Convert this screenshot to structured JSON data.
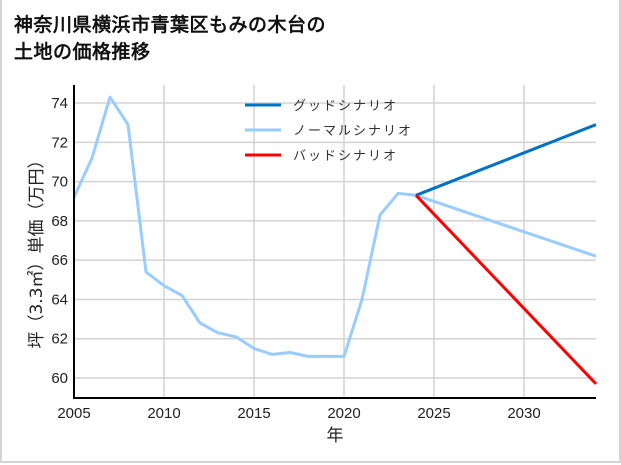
{
  "title_line1": "神奈川県横浜市青葉区もみの木台の",
  "title_line2": "土地の価格推移",
  "chart_data": {
    "type": "line",
    "title": "神奈川県横浜市青葉区もみの木台の土地の価格推移",
    "xlabel": "年",
    "ylabel": "坪（3.3㎡）単価（万円）",
    "xlim": [
      2005,
      2034
    ],
    "ylim": [
      59,
      75
    ],
    "x_ticks": [
      2005,
      2010,
      2015,
      2020,
      2025,
      2030
    ],
    "y_ticks": [
      60,
      62,
      64,
      66,
      68,
      70,
      72,
      74
    ],
    "grid": true,
    "legend_position": "upper center",
    "series": [
      {
        "name": "グッドシナリオ",
        "color": "#0072c6",
        "x": [
          2024,
          2034
        ],
        "values": [
          69.3,
          72.9
        ]
      },
      {
        "name": "ノーマルシナリオ",
        "color": "#99ccff",
        "x": [
          2005,
          2006,
          2007,
          2008,
          2009,
          2010,
          2011,
          2012,
          2013,
          2014,
          2015,
          2016,
          2017,
          2018,
          2019,
          2020,
          2021,
          2022,
          2023,
          2024,
          2034
        ],
        "values": [
          69.2,
          71.2,
          74.3,
          72.9,
          65.4,
          64.7,
          64.2,
          62.8,
          62.3,
          62.1,
          61.5,
          61.2,
          61.3,
          61.1,
          61.1,
          61.1,
          64.0,
          68.3,
          69.4,
          69.3,
          66.2
        ]
      },
      {
        "name": "バッドシナリオ",
        "color": "#ff0000",
        "x": [
          2024,
          2034
        ],
        "values": [
          69.3,
          59.7
        ]
      }
    ]
  }
}
